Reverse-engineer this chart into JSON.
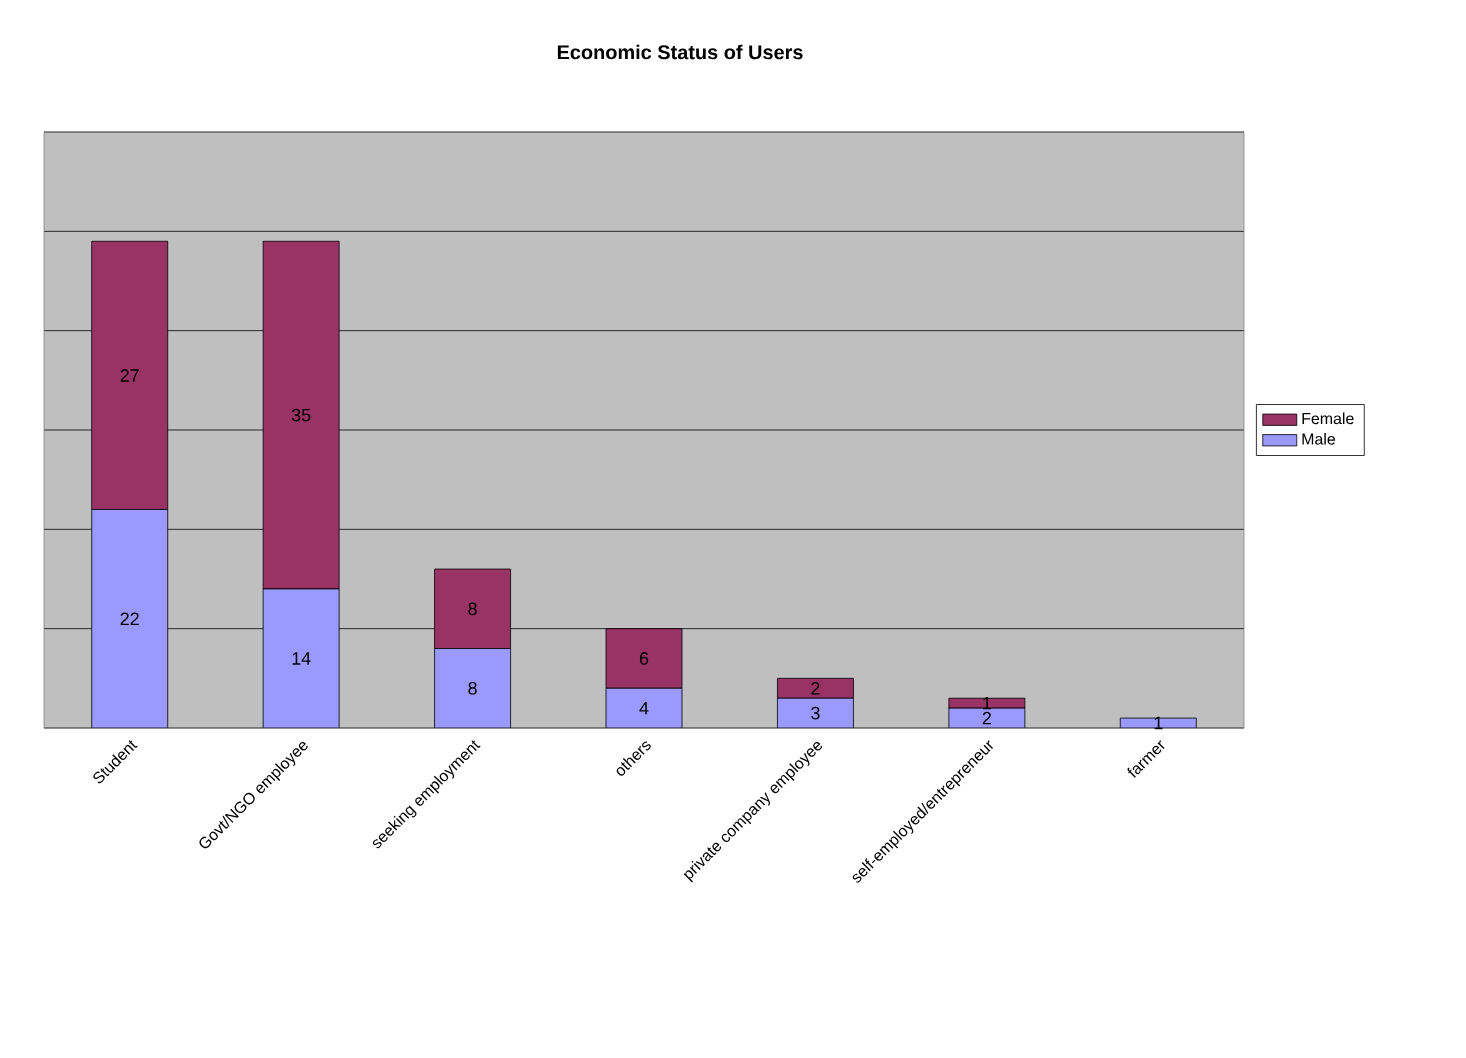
{
  "chart_data": {
    "type": "bar",
    "title": "Economic Status of Users",
    "categories": [
      "Student",
      "Govt/NGO employee",
      "seeking employment",
      "others",
      "private company employee",
      "self-employed/entrepreneur",
      "farmer"
    ],
    "series": [
      {
        "name": "Male",
        "color": "#9999ff",
        "values": [
          22,
          14,
          8,
          4,
          3,
          2,
          1
        ]
      },
      {
        "name": "Female",
        "color": "#993366",
        "values": [
          27,
          35,
          8,
          6,
          2,
          1,
          null
        ]
      }
    ],
    "stacked": true,
    "data_labels": true,
    "ylim": [
      0,
      60
    ],
    "yticks": [
      {
        "value": 0,
        "label": null
      },
      {
        "value": 10,
        "label": null
      },
      {
        "value": 20,
        "label": null
      },
      {
        "value": 30,
        "label": null
      },
      {
        "value": 40,
        "label": null
      },
      {
        "value": 50,
        "label": null
      },
      {
        "value": 60,
        "label": null
      }
    ],
    "grid": "y",
    "legend": "right",
    "tick_labels": "x"
  }
}
